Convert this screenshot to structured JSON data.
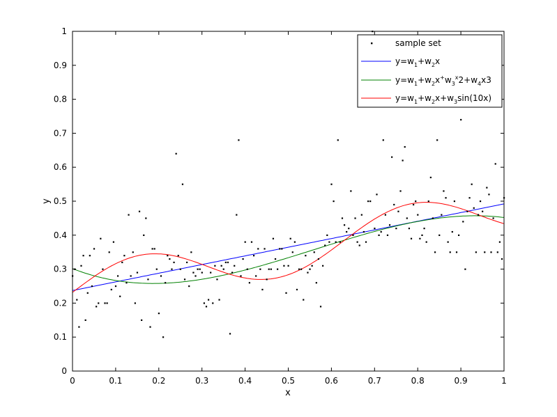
{
  "chart_data": {
    "type": "scatter",
    "xlabel": "x",
    "ylabel": "y",
    "xlim": [
      0,
      1
    ],
    "ylim": [
      0,
      1
    ],
    "xticks": [
      "0",
      "0.1",
      "0.2",
      "0.3",
      "0.4",
      "0.5",
      "0.6",
      "0.7",
      "0.8",
      "0.9",
      "1"
    ],
    "yticks": [
      "0",
      "0.1",
      "0.2",
      "0.3",
      "0.4",
      "0.5",
      "0.6",
      "0.7",
      "0.8",
      "0.9",
      "1"
    ],
    "grid": false,
    "legend_position": "top-right",
    "legend": [
      {
        "key": "samples",
        "base": "sample set",
        "sups": [],
        "color": "#000000",
        "marker": "dot"
      },
      {
        "key": "linear",
        "base": "y=w1+w2x",
        "sups": [],
        "color": "#0000ff",
        "marker": "line"
      },
      {
        "key": "cubic",
        "base": "y=w1+w2x+w3x2+w4x3",
        "sups": [
          8,
          11
        ],
        "color": "#008000",
        "marker": "line"
      },
      {
        "key": "sine",
        "base": "y=w1+w2x+w3sin(10x)",
        "sups": [],
        "color": "#ff0000",
        "marker": "line"
      }
    ],
    "samples": [
      [
        0.0,
        0.28
      ],
      [
        0.005,
        0.3
      ],
      [
        0.01,
        0.21
      ],
      [
        0.015,
        0.13
      ],
      [
        0.02,
        0.31
      ],
      [
        0.025,
        0.34
      ],
      [
        0.03,
        0.15
      ],
      [
        0.035,
        0.23
      ],
      [
        0.04,
        0.34
      ],
      [
        0.045,
        0.25
      ],
      [
        0.05,
        0.36
      ],
      [
        0.055,
        0.19
      ],
      [
        0.06,
        0.2
      ],
      [
        0.065,
        0.39
      ],
      [
        0.07,
        0.3
      ],
      [
        0.075,
        0.2
      ],
      [
        0.08,
        0.2
      ],
      [
        0.085,
        0.35
      ],
      [
        0.09,
        0.24
      ],
      [
        0.095,
        0.38
      ],
      [
        0.1,
        0.25
      ],
      [
        0.105,
        0.28
      ],
      [
        0.11,
        0.22
      ],
      [
        0.115,
        0.32
      ],
      [
        0.12,
        0.34
      ],
      [
        0.125,
        0.26
      ],
      [
        0.13,
        0.46
      ],
      [
        0.135,
        0.28
      ],
      [
        0.14,
        0.35
      ],
      [
        0.145,
        0.2
      ],
      [
        0.15,
        0.29
      ],
      [
        0.155,
        0.47
      ],
      [
        0.16,
        0.15
      ],
      [
        0.165,
        0.4
      ],
      [
        0.17,
        0.45
      ],
      [
        0.175,
        0.27
      ],
      [
        0.18,
        0.13
      ],
      [
        0.185,
        0.36
      ],
      [
        0.19,
        0.36
      ],
      [
        0.195,
        0.3
      ],
      [
        0.2,
        0.17
      ],
      [
        0.205,
        0.28
      ],
      [
        0.21,
        0.1
      ],
      [
        0.215,
        0.26
      ],
      [
        0.22,
        0.34
      ],
      [
        0.225,
        0.33
      ],
      [
        0.23,
        0.3
      ],
      [
        0.235,
        0.32
      ],
      [
        0.24,
        0.64
      ],
      [
        0.245,
        0.34
      ],
      [
        0.25,
        0.3
      ],
      [
        0.255,
        0.55
      ],
      [
        0.26,
        0.27
      ],
      [
        0.265,
        0.32
      ],
      [
        0.27,
        0.25
      ],
      [
        0.275,
        0.35
      ],
      [
        0.28,
        0.29
      ],
      [
        0.285,
        0.28
      ],
      [
        0.29,
        0.3
      ],
      [
        0.295,
        0.3
      ],
      [
        0.3,
        0.29
      ],
      [
        0.305,
        0.2
      ],
      [
        0.31,
        0.19
      ],
      [
        0.315,
        0.21
      ],
      [
        0.32,
        0.29
      ],
      [
        0.325,
        0.2
      ],
      [
        0.33,
        0.31
      ],
      [
        0.335,
        0.27
      ],
      [
        0.34,
        0.21
      ],
      [
        0.345,
        0.31
      ],
      [
        0.35,
        0.3
      ],
      [
        0.355,
        0.32
      ],
      [
        0.36,
        0.32
      ],
      [
        0.365,
        0.11
      ],
      [
        0.37,
        0.29
      ],
      [
        0.375,
        0.31
      ],
      [
        0.38,
        0.46
      ],
      [
        0.385,
        0.68
      ],
      [
        0.39,
        0.28
      ],
      [
        0.395,
        0.33
      ],
      [
        0.4,
        0.38
      ],
      [
        0.405,
        0.3
      ],
      [
        0.41,
        0.26
      ],
      [
        0.415,
        0.38
      ],
      [
        0.42,
        0.34
      ],
      [
        0.425,
        0.28
      ],
      [
        0.43,
        0.36
      ],
      [
        0.435,
        0.3
      ],
      [
        0.44,
        0.24
      ],
      [
        0.445,
        0.36
      ],
      [
        0.45,
        0.27
      ],
      [
        0.455,
        0.3
      ],
      [
        0.46,
        0.3
      ],
      [
        0.465,
        0.39
      ],
      [
        0.47,
        0.33
      ],
      [
        0.475,
        0.3
      ],
      [
        0.48,
        0.36
      ],
      [
        0.485,
        0.36
      ],
      [
        0.49,
        0.31
      ],
      [
        0.495,
        0.23
      ],
      [
        0.5,
        0.31
      ],
      [
        0.505,
        0.39
      ],
      [
        0.51,
        0.35
      ],
      [
        0.515,
        0.38
      ],
      [
        0.52,
        0.24
      ],
      [
        0.525,
        0.3
      ],
      [
        0.53,
        0.3
      ],
      [
        0.535,
        0.21
      ],
      [
        0.54,
        0.34
      ],
      [
        0.545,
        0.29
      ],
      [
        0.55,
        0.3
      ],
      [
        0.555,
        0.31
      ],
      [
        0.56,
        0.35
      ],
      [
        0.565,
        0.26
      ],
      [
        0.57,
        0.33
      ],
      [
        0.575,
        0.19
      ],
      [
        0.58,
        0.31
      ],
      [
        0.585,
        0.37
      ],
      [
        0.59,
        0.4
      ],
      [
        0.595,
        0.38
      ],
      [
        0.6,
        0.55
      ],
      [
        0.605,
        0.5
      ],
      [
        0.61,
        0.38
      ],
      [
        0.615,
        0.68
      ],
      [
        0.62,
        0.38
      ],
      [
        0.625,
        0.45
      ],
      [
        0.63,
        0.43
      ],
      [
        0.635,
        0.41
      ],
      [
        0.64,
        0.42
      ],
      [
        0.645,
        0.53
      ],
      [
        0.65,
        0.4
      ],
      [
        0.655,
        0.45
      ],
      [
        0.66,
        0.38
      ],
      [
        0.665,
        0.37
      ],
      [
        0.67,
        0.46
      ],
      [
        0.675,
        0.41
      ],
      [
        0.68,
        0.38
      ],
      [
        0.685,
        0.5
      ],
      [
        0.69,
        0.5
      ],
      [
        0.695,
        1.0
      ],
      [
        0.7,
        0.42
      ],
      [
        0.705,
        0.52
      ],
      [
        0.71,
        0.4
      ],
      [
        0.715,
        0.41
      ],
      [
        0.72,
        0.68
      ],
      [
        0.725,
        0.46
      ],
      [
        0.73,
        0.4
      ],
      [
        0.735,
        0.43
      ],
      [
        0.74,
        0.63
      ],
      [
        0.745,
        0.49
      ],
      [
        0.75,
        0.42
      ],
      [
        0.755,
        0.47
      ],
      [
        0.76,
        0.53
      ],
      [
        0.765,
        0.62
      ],
      [
        0.77,
        0.66
      ],
      [
        0.775,
        0.45
      ],
      [
        0.78,
        0.42
      ],
      [
        0.785,
        0.39
      ],
      [
        0.79,
        0.49
      ],
      [
        0.795,
        0.5
      ],
      [
        0.8,
        0.46
      ],
      [
        0.805,
        0.39
      ],
      [
        0.81,
        0.4
      ],
      [
        0.815,
        0.42
      ],
      [
        0.82,
        0.38
      ],
      [
        0.825,
        0.5
      ],
      [
        0.83,
        0.57
      ],
      [
        0.835,
        0.45
      ],
      [
        0.84,
        0.35
      ],
      [
        0.845,
        0.68
      ],
      [
        0.85,
        0.4
      ],
      [
        0.855,
        0.46
      ],
      [
        0.86,
        0.53
      ],
      [
        0.865,
        0.51
      ],
      [
        0.87,
        0.38
      ],
      [
        0.875,
        0.35
      ],
      [
        0.88,
        0.41
      ],
      [
        0.885,
        0.5
      ],
      [
        0.89,
        0.35
      ],
      [
        0.895,
        0.4
      ],
      [
        0.9,
        0.74
      ],
      [
        0.905,
        0.44
      ],
      [
        0.91,
        0.3
      ],
      [
        0.915,
        0.47
      ],
      [
        0.92,
        0.51
      ],
      [
        0.925,
        0.55
      ],
      [
        0.93,
        0.48
      ],
      [
        0.935,
        0.35
      ],
      [
        0.94,
        0.46
      ],
      [
        0.945,
        0.5
      ],
      [
        0.95,
        0.47
      ],
      [
        0.955,
        0.35
      ],
      [
        0.96,
        0.54
      ],
      [
        0.965,
        0.52
      ],
      [
        0.97,
        0.35
      ],
      [
        0.975,
        0.45
      ],
      [
        0.98,
        0.61
      ],
      [
        0.985,
        0.35
      ],
      [
        0.99,
        0.38
      ],
      [
        0.995,
        0.33
      ],
      [
        1.0,
        0.51
      ]
    ],
    "fits": {
      "linear": {
        "w": [
          0.237,
          0.255
        ]
      },
      "cubic": {
        "w": [
          0.3016,
          -0.5014,
          1.6103,
          -0.9585
        ]
      },
      "sine": {
        "w": [
          0.2316,
          0.2412,
          0.0716
        ]
      }
    }
  }
}
